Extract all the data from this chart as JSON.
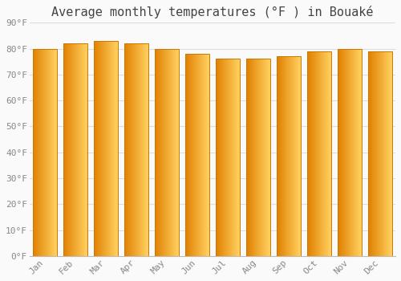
{
  "title": "Average monthly temperatures (°F ) in Bouaké",
  "months": [
    "Jan",
    "Feb",
    "Mar",
    "Apr",
    "May",
    "Jun",
    "Jul",
    "Aug",
    "Sep",
    "Oct",
    "Nov",
    "Dec"
  ],
  "values": [
    80,
    82,
    83,
    82,
    80,
    78,
    76,
    76,
    77,
    79,
    80,
    79
  ],
  "grad_color_left": "#E08000",
  "grad_color_right": "#FFD060",
  "bar_edge_color": "#CC7700",
  "background_color": "#FAFAFA",
  "grid_color": "#DDDDDD",
  "ylim": [
    0,
    90
  ],
  "yticks": [
    0,
    10,
    20,
    30,
    40,
    50,
    60,
    70,
    80,
    90
  ],
  "ytick_labels": [
    "0°F",
    "10°F",
    "20°F",
    "30°F",
    "40°F",
    "50°F",
    "60°F",
    "70°F",
    "80°F",
    "90°F"
  ],
  "title_fontsize": 11,
  "tick_fontsize": 8,
  "bar_width": 0.78
}
